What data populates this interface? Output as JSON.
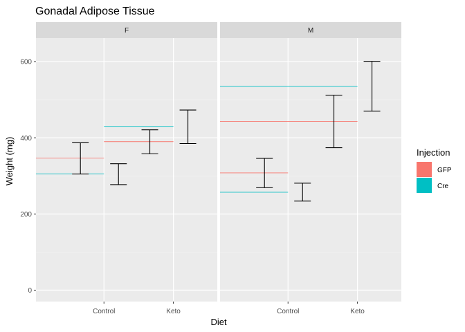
{
  "chart_data": {
    "type": "errorbar",
    "title": "Gonadal Adipose Tissue",
    "xlabel": "Diet",
    "ylabel": "Weight (mg)",
    "ylim": [
      -30,
      662
    ],
    "yticks": [
      0,
      200,
      400,
      600
    ],
    "categories": [
      "Control",
      "Keto"
    ],
    "grid": true,
    "legend": {
      "title": "Injection",
      "position": "right",
      "entries": [
        {
          "name": "GFP",
          "color": "#F8766D"
        },
        {
          "name": "Cre",
          "color": "#00BFC4"
        }
      ]
    },
    "panels": [
      {
        "facet": "F",
        "errorbars": [
          {
            "diet": "Control",
            "injection": "GFP",
            "low": 305,
            "high": 387
          },
          {
            "diet": "Control",
            "injection": "Cre",
            "low": 277,
            "high": 332
          },
          {
            "diet": "Keto",
            "injection": "GFP",
            "low": 358,
            "high": 421
          },
          {
            "diet": "Keto",
            "injection": "Cre",
            "low": 385,
            "high": 473
          }
        ],
        "hlines": [
          {
            "injection": "Cre",
            "y": 430,
            "from": "Control",
            "to": "Keto"
          },
          {
            "injection": "GFP",
            "y": 390,
            "from": "Control",
            "to": "Keto"
          },
          {
            "injection": "GFP",
            "y": 347,
            "from": "Control-left",
            "to": "Control"
          },
          {
            "injection": "Cre",
            "y": 305,
            "from": "Control-left",
            "to": "Control"
          }
        ]
      },
      {
        "facet": "M",
        "errorbars": [
          {
            "diet": "Control",
            "injection": "GFP",
            "low": 269,
            "high": 346
          },
          {
            "diet": "Control",
            "injection": "Cre",
            "low": 234,
            "high": 281
          },
          {
            "diet": "Keto",
            "injection": "GFP",
            "low": 374,
            "high": 512
          },
          {
            "diet": "Keto",
            "injection": "Cre",
            "low": 470,
            "high": 601
          }
        ],
        "hlines": [
          {
            "injection": "Cre",
            "y": 535,
            "from": "Control-left",
            "to": "Keto"
          },
          {
            "injection": "GFP",
            "y": 443,
            "from": "Control-left",
            "to": "Keto"
          },
          {
            "injection": "GFP",
            "y": 308,
            "from": "Control-left",
            "to": "Control"
          },
          {
            "injection": "Cre",
            "y": 257,
            "from": "Control-left",
            "to": "Control"
          }
        ]
      }
    ]
  }
}
